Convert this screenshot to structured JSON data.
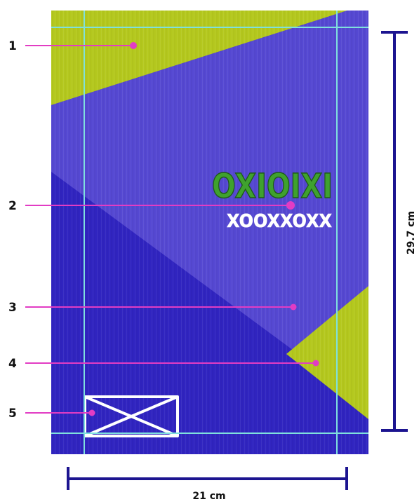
{
  "callouts": [
    {
      "number": "1"
    },
    {
      "number": "2"
    },
    {
      "number": "3"
    },
    {
      "number": "4"
    },
    {
      "number": "5"
    }
  ],
  "artwork": {
    "text_large": "OXIOIXI",
    "text_small": "XOOXXOXX"
  },
  "dimensions": {
    "height_label": "29.7 cm",
    "width_label": "21 cm"
  },
  "colors": {
    "lime": "#b4c81e",
    "violet": "#5548d2",
    "deep_blue": "#3024c0",
    "guide": "#7fe0dd",
    "callout": "#e23cc4",
    "dimension": "#1c1490",
    "green_text": "#3fa12e"
  }
}
